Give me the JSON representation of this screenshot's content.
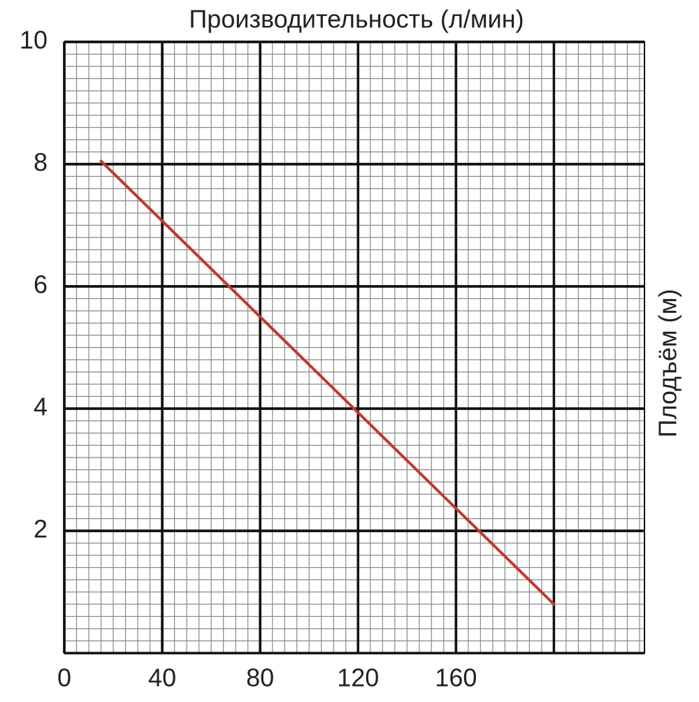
{
  "chart_data": {
    "type": "line",
    "title": "Производительность (л/мин)",
    "y_label": "Плодъём (м)",
    "x": [
      15,
      200
    ],
    "series": [
      {
        "name": "",
        "color": "#c0392b",
        "values": [
          8.05,
          0.8
        ]
      }
    ],
    "xlim": [
      0,
      237
    ],
    "xticks": [
      0,
      40,
      80,
      120,
      160
    ],
    "ylim": [
      0,
      10
    ],
    "yticks": [
      2,
      4,
      6,
      8,
      10
    ],
    "grid": true
  }
}
